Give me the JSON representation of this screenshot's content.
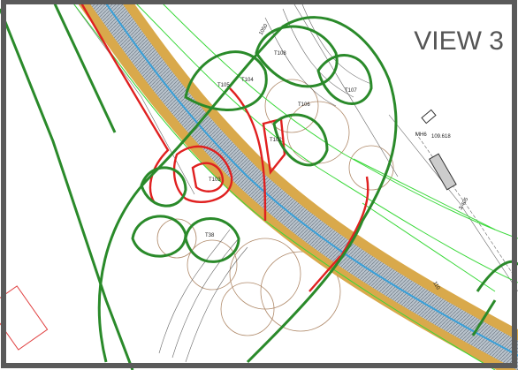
{
  "view_label": "VIEW 3",
  "labels": [
    "T105",
    "T104",
    "T106",
    "T108",
    "T107",
    "T103",
    "T102",
    "T38",
    "MH6",
    "109.618",
    "3.405",
    "1050",
    "110"
  ]
}
